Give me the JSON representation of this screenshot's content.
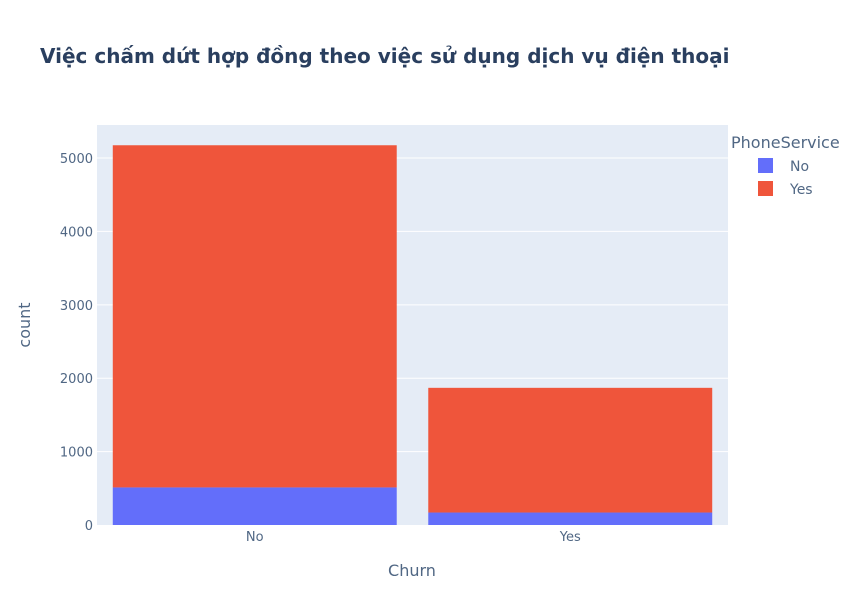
{
  "chart_data": {
    "type": "bar",
    "stacked": true,
    "title": "Việc chấm dứt hợp đồng theo việc sử dụng dịch vụ điện thoại",
    "xlabel": "Churn",
    "ylabel": "count",
    "categories": [
      "No",
      "Yes"
    ],
    "series": [
      {
        "name": "No",
        "values": [
          512,
          170
        ],
        "color": "#636efa"
      },
      {
        "name": "Yes",
        "values": [
          4662,
          1699
        ],
        "color": "#ef553b"
      }
    ],
    "ylim": [
      0,
      5450
    ],
    "yticks": [
      0,
      1000,
      2000,
      3000,
      4000,
      5000
    ],
    "ytick_labels": [
      "0",
      "1000",
      "2000",
      "3000",
      "4000",
      "5000"
    ],
    "legend": {
      "title": "PhoneService",
      "placement": "top-right"
    },
    "grid": true,
    "plot_bg": "#e5ecf6"
  }
}
